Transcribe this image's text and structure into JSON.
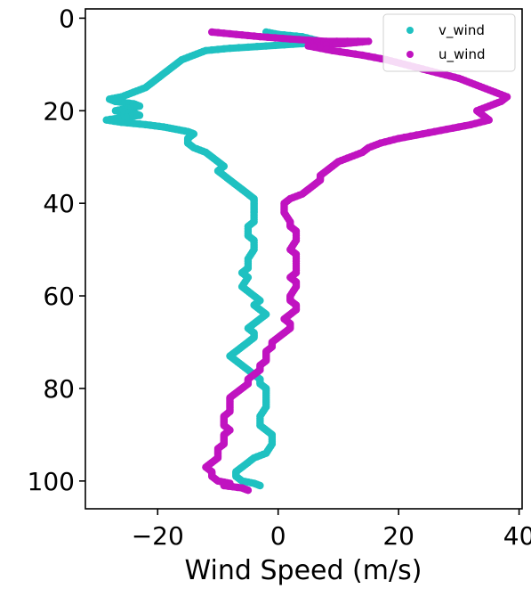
{
  "chart_data": {
    "type": "line",
    "title": "",
    "xlabel": "Wind Speed (m/s)",
    "ylabel": "",
    "xlim": [
      -32,
      40.5
    ],
    "ylim": [
      106,
      -2
    ],
    "y_inverted": true,
    "grid": false,
    "legend_position": "top-right",
    "x_ticks": [
      -20,
      0,
      20,
      40
    ],
    "x_tick_labels": [
      "−20",
      "0",
      "20",
      "40"
    ],
    "y_ticks": [
      0,
      20,
      40,
      60,
      80,
      100
    ],
    "y_tick_labels": [
      "0",
      "20",
      "40",
      "60",
      "80",
      "100"
    ],
    "series": [
      {
        "name": "v_wind",
        "color": "#1fc1c1",
        "points": [
          [
            -2,
            3
          ],
          [
            0,
            3.5
          ],
          [
            4,
            4
          ],
          [
            7,
            5
          ],
          [
            4,
            5.5
          ],
          [
            -2,
            6
          ],
          [
            -8,
            6.5
          ],
          [
            -12,
            7
          ],
          [
            -14,
            8
          ],
          [
            -16,
            9
          ],
          [
            -17,
            10
          ],
          [
            -18,
            11
          ],
          [
            -19,
            12
          ],
          [
            -20,
            13
          ],
          [
            -21,
            14
          ],
          [
            -22,
            15
          ],
          [
            -24,
            16
          ],
          [
            -26,
            17
          ],
          [
            -28,
            17.5
          ],
          [
            -27,
            18
          ],
          [
            -24,
            18.5
          ],
          [
            -23,
            19
          ],
          [
            -25,
            19.5
          ],
          [
            -27,
            20
          ],
          [
            -24,
            20.5
          ],
          [
            -23,
            21
          ],
          [
            -26,
            21.5
          ],
          [
            -28.5,
            22
          ],
          [
            -26,
            22.5
          ],
          [
            -22,
            23
          ],
          [
            -19,
            23.5
          ],
          [
            -17,
            24
          ],
          [
            -15,
            24.5
          ],
          [
            -14,
            25
          ],
          [
            -15,
            26
          ],
          [
            -15,
            27
          ],
          [
            -14,
            28
          ],
          [
            -12,
            29
          ],
          [
            -11,
            30
          ],
          [
            -10,
            31
          ],
          [
            -9,
            32
          ],
          [
            -10,
            33
          ],
          [
            -9,
            34
          ],
          [
            -8,
            35
          ],
          [
            -7,
            36
          ],
          [
            -6,
            37
          ],
          [
            -5,
            38
          ],
          [
            -4,
            39
          ],
          [
            -4,
            40
          ],
          [
            -4,
            41
          ],
          [
            -4,
            42
          ],
          [
            -4,
            44
          ],
          [
            -5,
            45
          ],
          [
            -5,
            47
          ],
          [
            -4,
            48
          ],
          [
            -4,
            50
          ],
          [
            -5,
            52
          ],
          [
            -5,
            54
          ],
          [
            -6,
            55
          ],
          [
            -5,
            56
          ],
          [
            -6,
            58
          ],
          [
            -5,
            59
          ],
          [
            -4,
            60
          ],
          [
            -3,
            61
          ],
          [
            -4,
            62
          ],
          [
            -3,
            63
          ],
          [
            -2,
            64
          ],
          [
            -3,
            65
          ],
          [
            -4,
            66
          ],
          [
            -5,
            67
          ],
          [
            -4,
            68
          ],
          [
            -4,
            69
          ],
          [
            -5,
            70
          ],
          [
            -6,
            71
          ],
          [
            -7,
            72
          ],
          [
            -8,
            73
          ],
          [
            -7,
            74
          ],
          [
            -6,
            75
          ],
          [
            -5,
            76
          ],
          [
            -4,
            77
          ],
          [
            -3,
            78
          ],
          [
            -3,
            79
          ],
          [
            -2,
            80
          ],
          [
            -2,
            82
          ],
          [
            -2,
            84
          ],
          [
            -3,
            86
          ],
          [
            -3,
            88
          ],
          [
            -2,
            89
          ],
          [
            -1,
            90
          ],
          [
            -1,
            92
          ],
          [
            -2,
            94
          ],
          [
            -4,
            95
          ],
          [
            -5,
            96
          ],
          [
            -6,
            97
          ],
          [
            -7,
            98
          ],
          [
            -7,
            99
          ],
          [
            -6,
            100
          ],
          [
            -4,
            100.5
          ],
          [
            -3,
            101
          ]
        ]
      },
      {
        "name": "u_wind",
        "color": "#c013c0",
        "points": [
          [
            -11,
            3
          ],
          [
            -7,
            3.5
          ],
          [
            -3,
            4
          ],
          [
            2,
            4.5
          ],
          [
            8,
            5
          ],
          [
            15,
            5
          ],
          [
            11,
            5.5
          ],
          [
            5,
            6
          ],
          [
            9,
            7
          ],
          [
            14,
            8
          ],
          [
            18,
            9
          ],
          [
            21,
            10
          ],
          [
            24,
            11
          ],
          [
            27,
            12
          ],
          [
            30,
            13
          ],
          [
            32,
            14
          ],
          [
            34,
            15
          ],
          [
            36,
            16
          ],
          [
            38,
            17
          ],
          [
            37,
            18
          ],
          [
            35,
            19
          ],
          [
            33,
            20
          ],
          [
            34,
            21
          ],
          [
            35,
            22
          ],
          [
            32,
            23
          ],
          [
            28,
            24
          ],
          [
            24,
            25
          ],
          [
            20,
            26
          ],
          [
            17,
            27
          ],
          [
            15,
            28
          ],
          [
            14,
            29
          ],
          [
            12,
            30
          ],
          [
            10,
            31
          ],
          [
            9,
            32
          ],
          [
            8,
            33
          ],
          [
            7,
            34
          ],
          [
            7,
            35
          ],
          [
            6,
            36
          ],
          [
            5,
            37
          ],
          [
            4,
            38
          ],
          [
            2,
            39
          ],
          [
            1,
            40
          ],
          [
            1,
            41
          ],
          [
            1,
            42
          ],
          [
            2,
            44
          ],
          [
            2,
            45
          ],
          [
            3,
            46
          ],
          [
            3,
            48
          ],
          [
            2,
            50
          ],
          [
            3,
            51
          ],
          [
            3,
            53
          ],
          [
            3,
            55
          ],
          [
            2,
            56
          ],
          [
            3,
            57
          ],
          [
            3,
            58
          ],
          [
            2,
            60
          ],
          [
            2,
            61
          ],
          [
            3,
            62
          ],
          [
            3,
            63
          ],
          [
            2,
            64
          ],
          [
            1,
            65
          ],
          [
            2,
            66
          ],
          [
            2,
            67
          ],
          [
            1,
            68
          ],
          [
            0,
            69
          ],
          [
            -1,
            70
          ],
          [
            -1,
            71
          ],
          [
            -2,
            72
          ],
          [
            -2,
            73
          ],
          [
            -2,
            74
          ],
          [
            -3,
            75
          ],
          [
            -3,
            76
          ],
          [
            -4,
            77
          ],
          [
            -5,
            78
          ],
          [
            -5,
            79
          ],
          [
            -6,
            80
          ],
          [
            -7,
            81
          ],
          [
            -8,
            82
          ],
          [
            -8,
            83
          ],
          [
            -8,
            84
          ],
          [
            -8,
            85
          ],
          [
            -9,
            86
          ],
          [
            -9,
            87
          ],
          [
            -9,
            88
          ],
          [
            -8,
            89
          ],
          [
            -9,
            90
          ],
          [
            -9,
            91
          ],
          [
            -9,
            92
          ],
          [
            -10,
            93
          ],
          [
            -10,
            94
          ],
          [
            -10,
            95
          ],
          [
            -11,
            96
          ],
          [
            -12,
            97
          ],
          [
            -11,
            98
          ],
          [
            -11,
            99
          ],
          [
            -10,
            100
          ],
          [
            -8,
            100.5
          ],
          [
            -9,
            101
          ],
          [
            -6,
            101.5
          ],
          [
            -5,
            102
          ]
        ]
      }
    ]
  }
}
